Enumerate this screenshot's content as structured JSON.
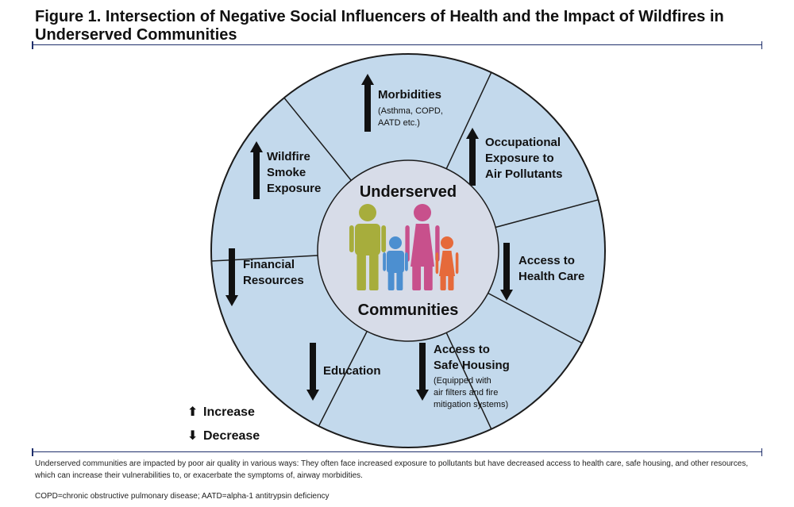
{
  "title": "Figure 1. Intersection of Negative Social Influencers of Health and the Impact of Wildfires in Underserved Communities",
  "colors": {
    "segment_fill": "#c3d9ec",
    "segment_stroke": "#1c1c1c",
    "center_fill": "#d7dce8",
    "adult_male": "#a7ad3c",
    "adult_female": "#c8508c",
    "child_boy": "#4c8fd0",
    "child_girl": "#e66a3a",
    "rule": "#1f2f6b"
  },
  "center": {
    "top_label": "Underserved",
    "bottom_label": "Communities",
    "figures": [
      "adult-male-figure",
      "child-boy-figure",
      "adult-female-figure",
      "child-girl-figure"
    ]
  },
  "segments": [
    {
      "id": "morbidities",
      "direction": "increase",
      "title_lines": [
        "Morbidities"
      ],
      "sub_lines": [
        "(Asthma, COPD,",
        "AATD etc.)"
      ]
    },
    {
      "id": "occupational",
      "direction": "increase",
      "title_lines": [
        "Occupational",
        "Exposure to",
        "Air Pollutants"
      ],
      "sub_lines": []
    },
    {
      "id": "health-care",
      "direction": "decrease",
      "title_lines": [
        "Access to",
        "Health Care"
      ],
      "sub_lines": []
    },
    {
      "id": "safe-housing",
      "direction": "decrease",
      "title_lines": [
        "Access to",
        "Safe Housing"
      ],
      "sub_lines": [
        "(Equipped with",
        "air filters and fire",
        "mitigation systems)"
      ]
    },
    {
      "id": "education",
      "direction": "decrease",
      "title_lines": [
        "Education"
      ],
      "sub_lines": []
    },
    {
      "id": "financial",
      "direction": "decrease",
      "title_lines": [
        "Financial",
        "Resources"
      ],
      "sub_lines": []
    },
    {
      "id": "wildfire-smoke",
      "direction": "increase",
      "title_lines": [
        "Wildfire",
        "Smoke",
        "Exposure"
      ],
      "sub_lines": []
    }
  ],
  "legend": {
    "increase": "Increase",
    "decrease": "Decrease",
    "increase_glyph": "⬆",
    "decrease_glyph": "⬇"
  },
  "footnotes": {
    "description": "Underserved communities are impacted by poor air quality in various ways: They often face increased exposure to pollutants but have decreased access to health care, safe housing, and other resources, which can increase their vulnerabilities to, or exacerbate the symptoms of, airway morbidities.",
    "abbreviations": "COPD=chronic obstructive pulmonary disease; AATD=alpha-1 antitrypsin deficiency"
  }
}
